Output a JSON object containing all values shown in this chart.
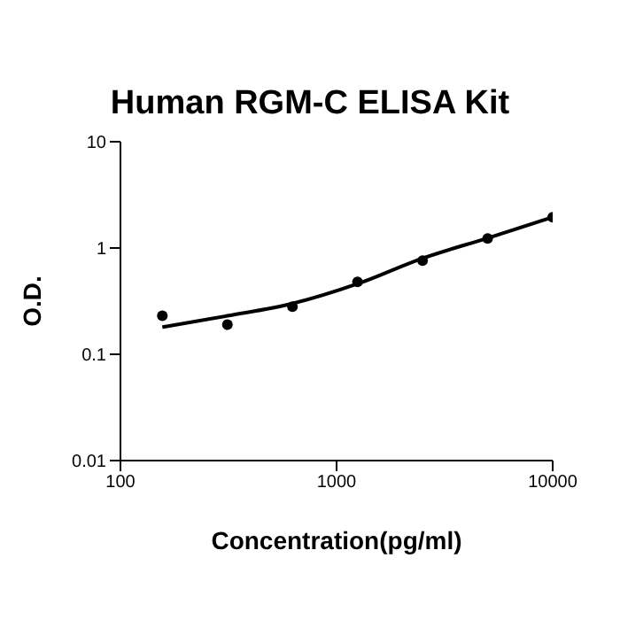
{
  "chart_data": {
    "type": "scatter",
    "title": "Human RGM-C ELISA Kit",
    "xlabel": "Concentration(pg/ml)",
    "ylabel": "O.D.",
    "log": "xy",
    "marker": "circle",
    "x": [
      156.25,
      312.5,
      625,
      1250,
      2500,
      5000,
      10000
    ],
    "series": [
      {
        "color": "#000000",
        "values": [
          0.23,
          0.19,
          0.28,
          0.48,
          0.76,
          1.23,
          1.95
        ]
      },
      {
        "type": "line",
        "color": "#000000",
        "marker": "none",
        "line_style": "solid",
        "x": [
          156.25,
          312.5,
          625,
          1250,
          2500,
          5000,
          10000
        ],
        "values": [
          0.18,
          0.23,
          0.3,
          0.46,
          0.8,
          1.24,
          1.95
        ]
      }
    ],
    "xlim": [
      100,
      10000
    ],
    "ylim": [
      0.01,
      10
    ],
    "xticks": [
      100,
      1000,
      10000
    ],
    "yticks": [
      0.01,
      0.1,
      1,
      10
    ]
  }
}
